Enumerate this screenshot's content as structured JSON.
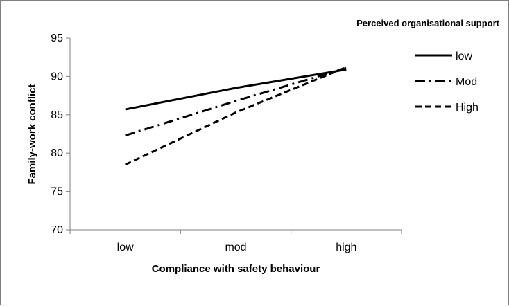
{
  "chart_data": {
    "type": "line",
    "title": "",
    "xlabel": "Compliance with safety behaviour",
    "ylabel": "Family-work conflict",
    "categories": [
      "low",
      "mod",
      "high"
    ],
    "ylim": [
      70,
      95
    ],
    "yticks": [
      70,
      75,
      80,
      85,
      90,
      95
    ],
    "grid": false,
    "legend": {
      "title": "Perceived organisational support",
      "placement": "right"
    },
    "series": [
      {
        "name": "low",
        "values": [
          85.7,
          88.5,
          90.9
        ],
        "style": "solid"
      },
      {
        "name": "Mod",
        "values": [
          82.3,
          86.8,
          91.1
        ],
        "style": "dashdot"
      },
      {
        "name": "High",
        "values": [
          78.5,
          85.3,
          91.2
        ],
        "style": "dashed"
      }
    ]
  }
}
